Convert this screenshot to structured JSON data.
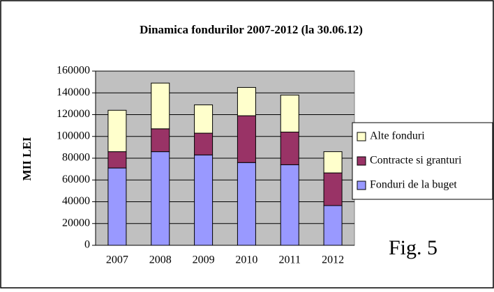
{
  "chart_data": {
    "type": "stacked_bar",
    "title": "Dinamica fondurilor 2007-2012 (la 30.06.12)",
    "y_label": "MII LEI",
    "annotation": "Fig. 5",
    "categories": [
      "2007",
      "2008",
      "2009",
      "2010",
      "2011",
      "2012"
    ],
    "series": [
      {
        "name": "Fonduri de la buget",
        "color": "#9999ff",
        "values": [
          71000,
          86000,
          83000,
          76000,
          74000,
          36500
        ]
      },
      {
        "name": "Contracte si granturi",
        "color": "#993366",
        "values": [
          15000,
          21000,
          20000,
          43000,
          30000,
          30000
        ]
      },
      {
        "name": "Alte fonduri",
        "color": "#ffffcc",
        "values": [
          38000,
          42000,
          26000,
          26000,
          34000,
          19500
        ]
      }
    ],
    "ylim": [
      0,
      160000
    ],
    "yticks": [
      0,
      20000,
      40000,
      60000,
      80000,
      100000,
      120000,
      140000,
      160000
    ],
    "grid": true,
    "legend": "right",
    "plot_background": "#c0c0c0"
  }
}
